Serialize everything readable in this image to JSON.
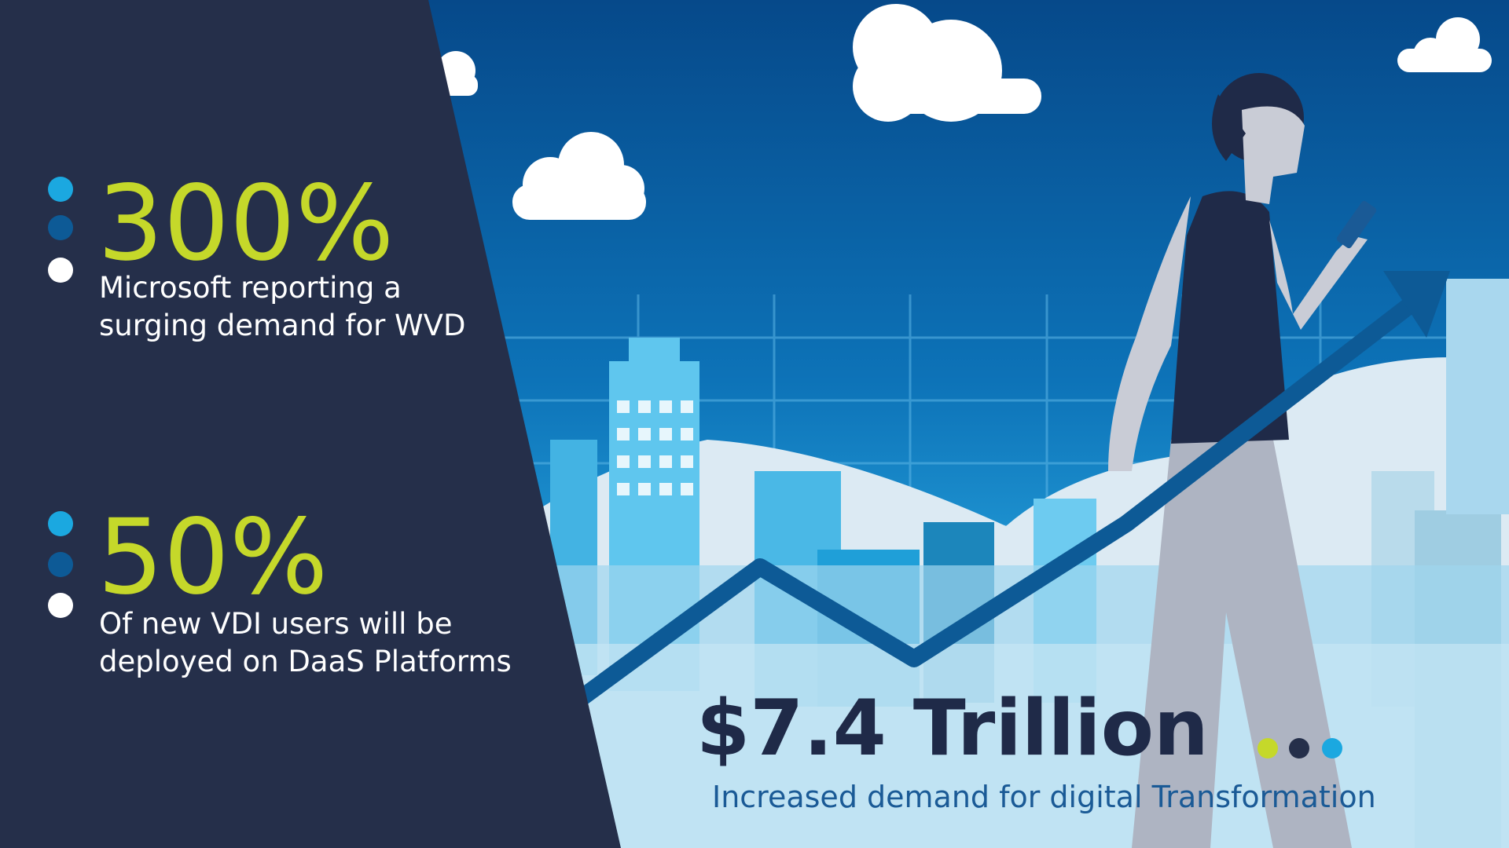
{
  "stats": [
    {
      "value": "300%",
      "lines": [
        "Microsoft reporting a",
        "surging demand for WVD"
      ]
    },
    {
      "value": "50%",
      "lines": [
        "Of new VDI users will be",
        "deployed on DaaS Platforms"
      ]
    }
  ],
  "headline": {
    "value": "$7.4 Trillion",
    "subtitle": "Increased demand for digital Transformation"
  }
}
